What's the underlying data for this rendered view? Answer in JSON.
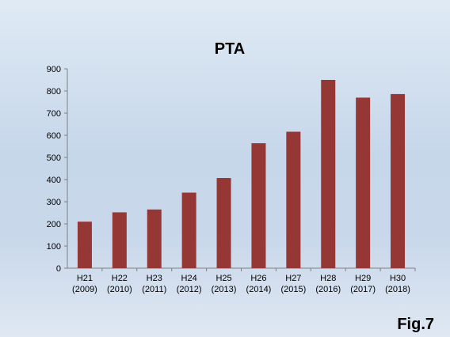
{
  "figure_label": "Fig.7",
  "chart_data": {
    "type": "bar",
    "title": "PTA",
    "categories": [
      [
        "H21",
        "(2009)"
      ],
      [
        "H22",
        "(2010)"
      ],
      [
        "H23",
        "(2011)"
      ],
      [
        "H24",
        "(2012)"
      ],
      [
        "H25",
        "(2013)"
      ],
      [
        "H26",
        "(2014)"
      ],
      [
        "H27",
        "(2015)"
      ],
      [
        "H28",
        "(2016)"
      ],
      [
        "H29",
        "(2017)"
      ],
      [
        "H30",
        "(2018)"
      ]
    ],
    "values": [
      210,
      252,
      265,
      341,
      407,
      564,
      616,
      850,
      770,
      786
    ],
    "ylim": [
      0,
      900
    ],
    "yticks": [
      0,
      100,
      200,
      300,
      400,
      500,
      600,
      700,
      800,
      900
    ],
    "xlabel": "",
    "ylabel": "",
    "grid": false,
    "legend": "none",
    "bar_color": "#953735"
  }
}
